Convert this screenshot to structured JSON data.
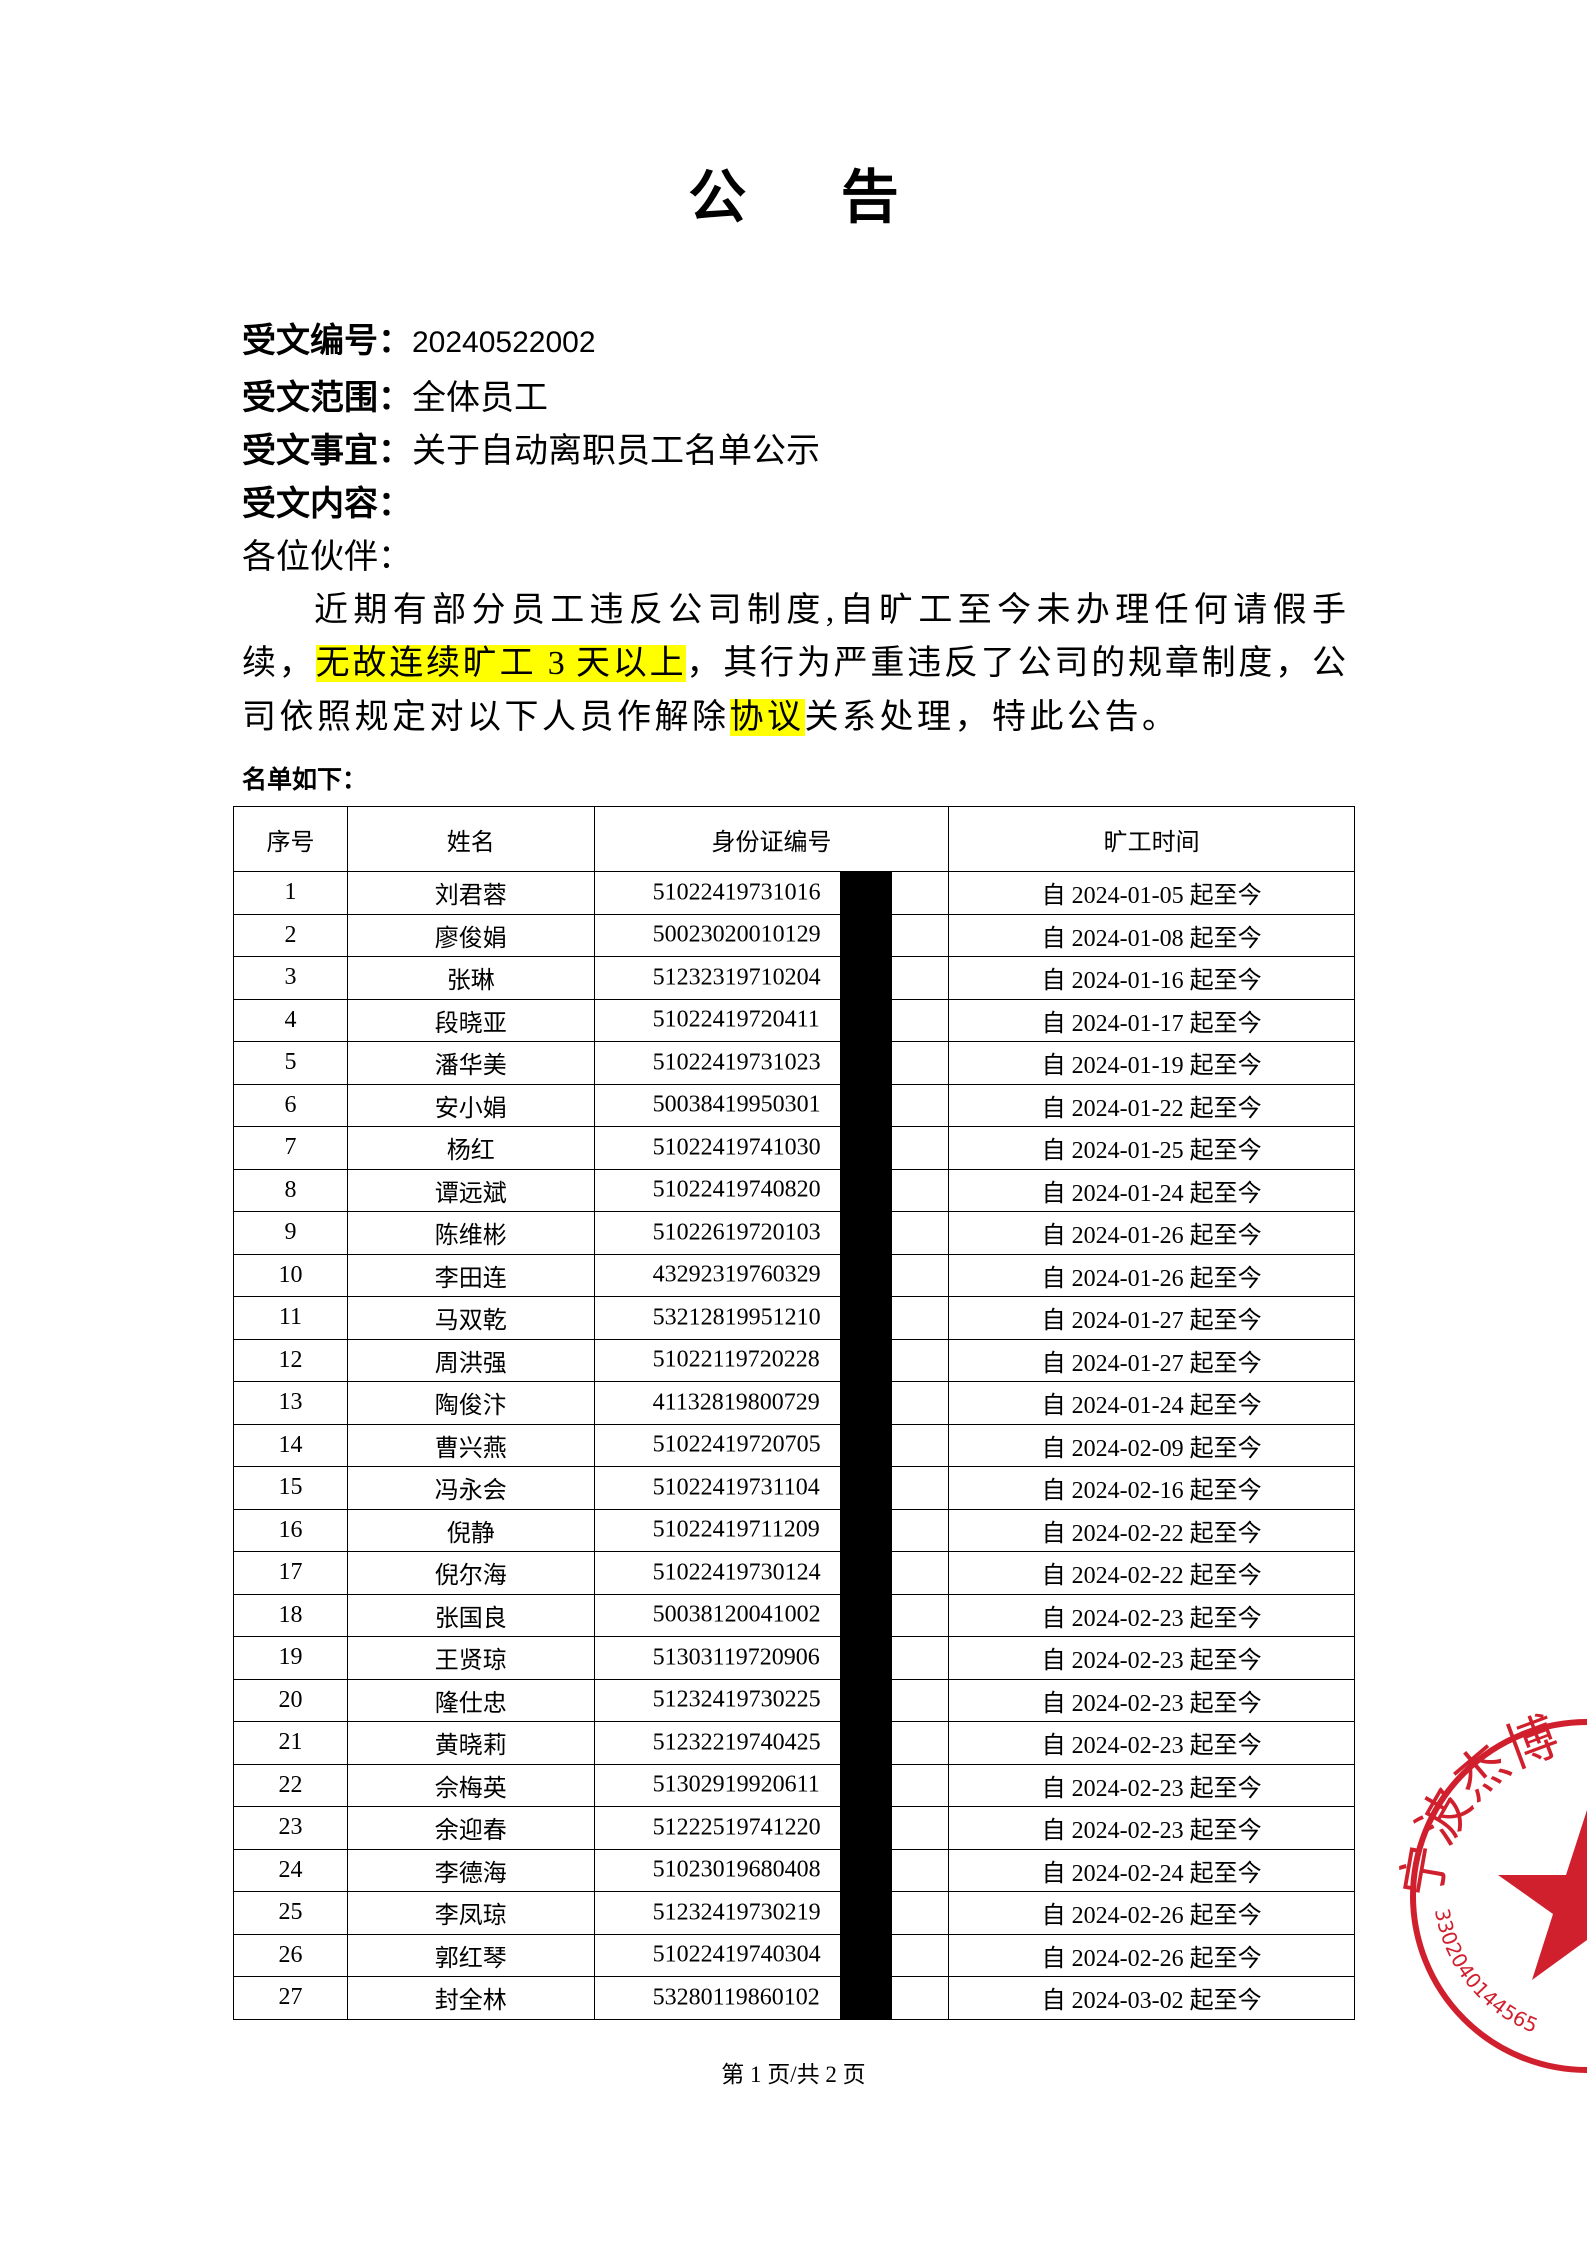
{
  "title": "公 告",
  "meta": [
    {
      "label": "受文编号：",
      "value": "20240522002"
    },
    {
      "label": "受文范围：",
      "value": "全体员工"
    },
    {
      "label": "受文事宜：",
      "value": "关于自动离职员工名单公示"
    },
    {
      "label": "受文内容：",
      "value": ""
    }
  ],
  "greeting": "各位伙伴：",
  "paragraph": {
    "line1": "近期有部分员工违反公司制度,自旷工至今未办理任何请假手",
    "line2_pre": "续，",
    "line2_hl": "无故连续旷工 3 天以上",
    "line2_post": "，其行为严重违反了公司的规章制度，公",
    "line3_pre": "司依照规定对以下人员作解除",
    "line3_hl": "协议",
    "line3_post": "关系处理，特此公告。"
  },
  "highlight_color": "#ffff00",
  "list_label": "名单如下：",
  "table": {
    "headers": [
      "序号",
      "姓名",
      "身份证编号",
      "旷工时间"
    ],
    "rows": [
      [
        "1",
        "刘君蓉",
        "51022419731016",
        "自 2024-01-05 起至今"
      ],
      [
        "2",
        "廖俊娟",
        "50023020010129",
        "自 2024-01-08 起至今"
      ],
      [
        "3",
        "张琳",
        "51232319710204",
        "自 2024-01-16 起至今"
      ],
      [
        "4",
        "段晓亚",
        "51022419720411",
        "自 2024-01-17 起至今"
      ],
      [
        "5",
        "潘华美",
        "51022419731023",
        "自 2024-01-19 起至今"
      ],
      [
        "6",
        "安小娟",
        "50038419950301",
        "自 2024-01-22 起至今"
      ],
      [
        "7",
        "杨红",
        "51022419741030",
        "自 2024-01-25 起至今"
      ],
      [
        "8",
        "谭远斌",
        "51022419740820",
        "自 2024-01-24 起至今"
      ],
      [
        "9",
        "陈维彬",
        "51022619720103",
        "自 2024-01-26 起至今"
      ],
      [
        "10",
        "李田连",
        "43292319760329",
        "自 2024-01-26 起至今"
      ],
      [
        "11",
        "马双乾",
        "53212819951210",
        "自 2024-01-27 起至今"
      ],
      [
        "12",
        "周洪强",
        "51022119720228",
        "自 2024-01-27 起至今"
      ],
      [
        "13",
        "陶俊汴",
        "41132819800729",
        "自 2024-01-24 起至今"
      ],
      [
        "14",
        "曹兴燕",
        "51022419720705",
        "自 2024-02-09 起至今"
      ],
      [
        "15",
        "冯永会",
        "51022419731104",
        "自 2024-02-16 起至今"
      ],
      [
        "16",
        "倪静",
        "51022419711209",
        "自 2024-02-22 起至今"
      ],
      [
        "17",
        "倪尔海",
        "51022419730124",
        "自 2024-02-22 起至今"
      ],
      [
        "18",
        "张国良",
        "50038120041002",
        "自 2024-02-23 起至今"
      ],
      [
        "19",
        "王贤琼",
        "51303119720906",
        "自 2024-02-23 起至今"
      ],
      [
        "20",
        "隆仕忠",
        "51232419730225",
        "自 2024-02-23 起至今"
      ],
      [
        "21",
        "黄晓莉",
        "51232219740425",
        "自 2024-02-23 起至今"
      ],
      [
        "22",
        "佘梅英",
        "51302919920611",
        "自 2024-02-23 起至今"
      ],
      [
        "23",
        "余迎春",
        "51222519741220",
        "自 2024-02-23 起至今"
      ],
      [
        "24",
        "李德海",
        "51023019680408",
        "自 2024-02-24 起至今"
      ],
      [
        "25",
        "李凤琼",
        "51232419730219",
        "自 2024-02-26 起至今"
      ],
      [
        "26",
        "郭红琴",
        "51022419740304",
        "自 2024-02-26 起至今"
      ],
      [
        "27",
        "封全林",
        "53280119860102",
        "自 2024-03-02 起至今"
      ]
    ]
  },
  "footer": "第 1 页/共 2 页",
  "stamp": {
    "name_text": "宁波杰博",
    "code_text": "3302040144565",
    "color": "#d0202e"
  }
}
